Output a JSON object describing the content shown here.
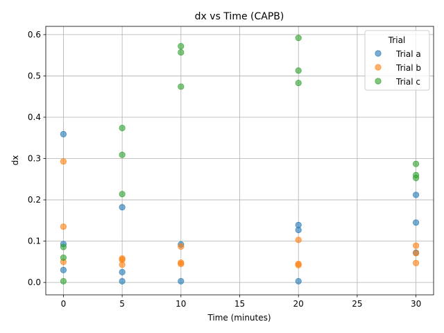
{
  "chart_data": {
    "type": "scatter",
    "title": "dx vs Time (CAPB)",
    "xlabel": "Time (minutes)",
    "ylabel": "dx",
    "xlim": [
      -1.5,
      31.5
    ],
    "ylim": [
      -0.03,
      0.62
    ],
    "xticks": [
      0,
      5,
      10,
      15,
      20,
      25,
      30
    ],
    "yticks": [
      0.0,
      0.1,
      0.2,
      0.3,
      0.4,
      0.5,
      0.6
    ],
    "xtick_labels": [
      "0",
      "5",
      "10",
      "15",
      "20",
      "25",
      "30"
    ],
    "ytick_labels": [
      "0.0",
      "0.1",
      "0.2",
      "0.3",
      "0.4",
      "0.5",
      "0.6"
    ],
    "grid": true,
    "legend": {
      "title": "Trial",
      "placement": "top-right"
    },
    "series": [
      {
        "name": "Trial a",
        "color": "#1f77b4",
        "points": [
          [
            0,
            0.359
          ],
          [
            0,
            0.093
          ],
          [
            0,
            0.03
          ],
          [
            5,
            0.182
          ],
          [
            5,
            0.025
          ],
          [
            5,
            0.003
          ],
          [
            10,
            0.092
          ],
          [
            10,
            0.003
          ],
          [
            20,
            0.139
          ],
          [
            20,
            0.127
          ],
          [
            20,
            0.003
          ],
          [
            30,
            0.212
          ],
          [
            30,
            0.145
          ],
          [
            30,
            0.072
          ]
        ]
      },
      {
        "name": "Trial b",
        "color": "#ff7f0e",
        "points": [
          [
            0,
            0.293
          ],
          [
            0,
            0.135
          ],
          [
            0,
            0.05
          ],
          [
            5,
            0.058
          ],
          [
            5,
            0.055
          ],
          [
            5,
            0.043
          ],
          [
            10,
            0.087
          ],
          [
            10,
            0.048
          ],
          [
            10,
            0.045
          ],
          [
            20,
            0.103
          ],
          [
            20,
            0.045
          ],
          [
            20,
            0.042
          ],
          [
            30,
            0.089
          ],
          [
            30,
            0.071
          ],
          [
            30,
            0.047
          ]
        ]
      },
      {
        "name": "Trial c",
        "color": "#2ca02c",
        "points": [
          [
            0,
            0.086
          ],
          [
            0,
            0.06
          ],
          [
            0,
            0.003
          ],
          [
            5,
            0.374
          ],
          [
            5,
            0.309
          ],
          [
            5,
            0.214
          ],
          [
            10,
            0.572
          ],
          [
            10,
            0.557
          ],
          [
            10,
            0.474
          ],
          [
            20,
            0.592
          ],
          [
            20,
            0.513
          ],
          [
            20,
            0.483
          ],
          [
            30,
            0.287
          ],
          [
            30,
            0.26
          ],
          [
            30,
            0.253
          ]
        ]
      }
    ]
  }
}
